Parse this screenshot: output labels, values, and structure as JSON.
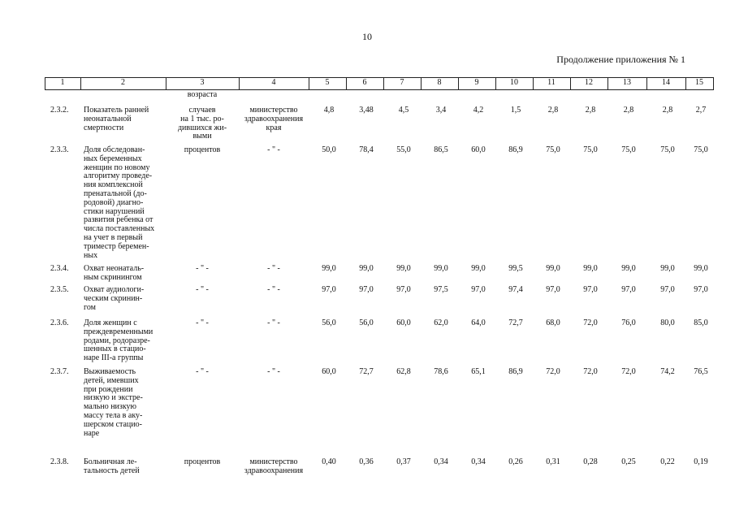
{
  "page_number": "10",
  "continuation": "Продолжение приложения № 1",
  "table": {
    "header": [
      "1",
      "2",
      "3",
      "4",
      "5",
      "6",
      "7",
      "8",
      "9",
      "10",
      "11",
      "12",
      "13",
      "14",
      "15"
    ],
    "carryover": {
      "unit": "возраста"
    },
    "rows": [
      {
        "number": "2.3.2.",
        "name": [
          "Показатель ранней",
          "неонатальной",
          "смертности"
        ],
        "unit": [
          "случаев",
          "на 1 тыс. ро-",
          "дившихся жи-",
          "выми"
        ],
        "responsible": [
          "министерство",
          "здравоохранения",
          "края"
        ],
        "values": [
          "4,8",
          "3,48",
          "4,5",
          "3,4",
          "4,2",
          "1,5",
          "2,8",
          "2,8",
          "2,8",
          "2,8",
          "2,7"
        ]
      },
      {
        "number": "2.3.3.",
        "name": [
          "Доля обследован-",
          "ных беременных",
          "женщин по новому",
          "алгоритму проведе-",
          "ния комплексной",
          "пренатальной (до-",
          "родовой) диагно-",
          "стики нарушений",
          "развития ребенка от",
          "числа поставленных",
          "на учет в первый",
          "триместр беремен-",
          "ных"
        ],
        "unit": [
          "процентов"
        ],
        "responsible": [
          "- \" -"
        ],
        "values": [
          "50,0",
          "78,4",
          "55,0",
          "86,5",
          "60,0",
          "86,9",
          "75,0",
          "75,0",
          "75,0",
          "75,0",
          "75,0"
        ]
      },
      {
        "number": "2.3.4.",
        "name": [
          "Охват неонаталь-",
          "ным скринингом"
        ],
        "unit": [
          "- \" -"
        ],
        "responsible": [
          "- \" -"
        ],
        "values": [
          "99,0",
          "99,0",
          "99,0",
          "99,0",
          "99,0",
          "99,5",
          "99,0",
          "99,0",
          "99,0",
          "99,0",
          "99,0"
        ]
      },
      {
        "number": "2.3.5.",
        "name": [
          "Охват аудиологи-",
          "ческим скринин-",
          "гом"
        ],
        "unit": [
          "- \" -"
        ],
        "responsible": [
          "- \" -"
        ],
        "values": [
          "97,0",
          "97,0",
          "97,0",
          "97,5",
          "97,0",
          "97,4",
          "97,0",
          "97,0",
          "97,0",
          "97,0",
          "97,0"
        ]
      },
      {
        "number": "2.3.6.",
        "name": [
          "Доля женщин с",
          "преждевременными",
          "родами, родоразре-",
          "шенных в стацио-",
          "наре III-а группы"
        ],
        "unit": [
          "- \" -"
        ],
        "responsible": [
          "- \" -"
        ],
        "values": [
          "56,0",
          "56,0",
          "60,0",
          "62,0",
          "64,0",
          "72,7",
          "68,0",
          "72,0",
          "76,0",
          "80,0",
          "85,0"
        ]
      },
      {
        "number": "2.3.7.",
        "name": [
          "Выживаемость",
          "детей, имевших",
          "при рождении",
          "низкую и экстре-",
          "мально низкую",
          "массу тела в аку-",
          "шерском стацио-",
          "наре"
        ],
        "unit": [
          "- \" -"
        ],
        "responsible": [
          "- \" -"
        ],
        "values": [
          "60,0",
          "72,7",
          "62,8",
          "78,6",
          "65,1",
          "86,9",
          "72,0",
          "72,0",
          "72,0",
          "74,2",
          "76,5"
        ]
      },
      {
        "number": "2.3.8.",
        "name": [
          "Больничная ле-",
          "тальность детей"
        ],
        "unit": [
          "процентов"
        ],
        "responsible": [
          "министерство",
          "здравоохранения"
        ],
        "values": [
          "0,40",
          "0,36",
          "0,37",
          "0,34",
          "0,34",
          "0,26",
          "0,31",
          "0,28",
          "0,25",
          "0,22",
          "0,19"
        ]
      }
    ]
  }
}
